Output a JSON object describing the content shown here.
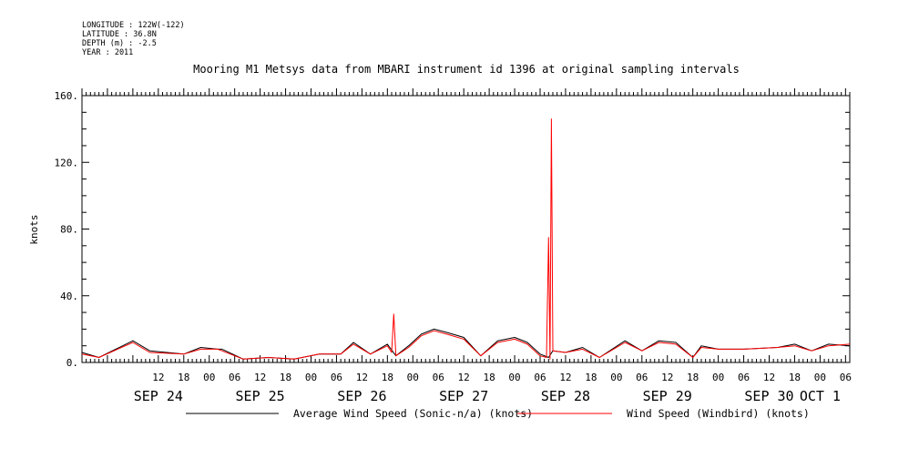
{
  "header": {
    "longitude": "LONGITUDE : 122W(-122)",
    "latitude": "LATITUDE : 36.8N",
    "depth": "DEPTH (m) : -2.5",
    "year": "YEAR : 2011"
  },
  "chart_data": {
    "type": "line",
    "title": "Mooring M1 Metsys data from MBARI instrument id 1396 at original sampling intervals",
    "ylabel": "knots",
    "xlabel": "",
    "ylim": [
      0,
      160
    ],
    "yticks": [
      0,
      40,
      80,
      120,
      160
    ],
    "ytick_labels": [
      "0.",
      "40.",
      "80.",
      "120.",
      "160."
    ],
    "xlim": [
      "2011-09-23T18:00",
      "2011-10-01T07:00"
    ],
    "hour_ticks": [
      {
        "t": "2011-09-24T12:00",
        "label": "12"
      },
      {
        "t": "2011-09-24T18:00",
        "label": "18"
      },
      {
        "t": "2011-09-25T00:00",
        "label": "00"
      },
      {
        "t": "2011-09-25T06:00",
        "label": "06"
      },
      {
        "t": "2011-09-25T12:00",
        "label": "12"
      },
      {
        "t": "2011-09-25T18:00",
        "label": "18"
      },
      {
        "t": "2011-09-26T00:00",
        "label": "00"
      },
      {
        "t": "2011-09-26T06:00",
        "label": "06"
      },
      {
        "t": "2011-09-26T12:00",
        "label": "12"
      },
      {
        "t": "2011-09-26T18:00",
        "label": "18"
      },
      {
        "t": "2011-09-27T00:00",
        "label": "00"
      },
      {
        "t": "2011-09-27T06:00",
        "label": "06"
      },
      {
        "t": "2011-09-27T12:00",
        "label": "12"
      },
      {
        "t": "2011-09-27T18:00",
        "label": "18"
      },
      {
        "t": "2011-09-28T00:00",
        "label": "00"
      },
      {
        "t": "2011-09-28T06:00",
        "label": "06"
      },
      {
        "t": "2011-09-28T12:00",
        "label": "12"
      },
      {
        "t": "2011-09-28T18:00",
        "label": "18"
      },
      {
        "t": "2011-09-29T00:00",
        "label": "00"
      },
      {
        "t": "2011-09-29T06:00",
        "label": "06"
      },
      {
        "t": "2011-09-29T12:00",
        "label": "12"
      },
      {
        "t": "2011-09-29T18:00",
        "label": "18"
      },
      {
        "t": "2011-09-30T00:00",
        "label": "00"
      },
      {
        "t": "2011-09-30T06:00",
        "label": "06"
      },
      {
        "t": "2011-09-30T12:00",
        "label": "12"
      },
      {
        "t": "2011-09-30T18:00",
        "label": "18"
      },
      {
        "t": "2011-10-01T00:00",
        "label": "00"
      },
      {
        "t": "2011-10-01T06:00",
        "label": "06"
      }
    ],
    "date_labels": [
      {
        "t": "2011-09-24T12:00",
        "label": "SEP 24"
      },
      {
        "t": "2011-09-25T12:00",
        "label": "SEP 25"
      },
      {
        "t": "2011-09-26T12:00",
        "label": "SEP 26"
      },
      {
        "t": "2011-09-27T12:00",
        "label": "SEP 27"
      },
      {
        "t": "2011-09-28T12:00",
        "label": "SEP 28"
      },
      {
        "t": "2011-09-29T12:00",
        "label": "SEP 29"
      },
      {
        "t": "2011-09-30T12:00",
        "label": "SEP 30"
      },
      {
        "t": "2011-10-01T00:00",
        "label": "OCT  1"
      }
    ],
    "series": [
      {
        "name": "Average Wind Speed (Sonic-n/a) (knots)",
        "color": "#000000",
        "x": [
          "2011-09-23T18:00",
          "2011-09-23T22:00",
          "2011-09-24T06:00",
          "2011-09-24T10:00",
          "2011-09-24T18:00",
          "2011-09-24T22:00",
          "2011-09-25T02:00",
          "2011-09-25T03:00",
          "2011-09-25T08:00",
          "2011-09-25T14:00",
          "2011-09-25T20:00",
          "2011-09-26T02:00",
          "2011-09-26T07:00",
          "2011-09-26T10:00",
          "2011-09-26T14:00",
          "2011-09-26T18:00",
          "2011-09-26T20:00",
          "2011-09-26T23:00",
          "2011-09-27T02:00",
          "2011-09-27T05:00",
          "2011-09-27T08:00",
          "2011-09-27T12:00",
          "2011-09-27T16:00",
          "2011-09-27T20:00",
          "2011-09-28T00:00",
          "2011-09-28T03:00",
          "2011-09-28T06:00",
          "2011-09-28T08:00",
          "2011-09-28T09:00",
          "2011-09-28T12:00",
          "2011-09-28T16:00",
          "2011-09-28T20:00",
          "2011-09-29T02:00",
          "2011-09-29T06:00",
          "2011-09-29T10:00",
          "2011-09-29T14:00",
          "2011-09-29T18:00",
          "2011-09-29T20:00",
          "2011-09-30T00:00",
          "2011-09-30T06:00",
          "2011-09-30T14:00",
          "2011-09-30T18:00",
          "2011-09-30T22:00",
          "2011-10-01T02:00",
          "2011-10-01T07:00"
        ],
        "y": [
          6,
          3,
          13,
          7,
          5,
          9,
          8,
          8,
          2,
          3,
          2,
          5,
          5,
          12,
          5,
          11,
          4,
          10,
          17,
          20,
          18,
          15,
          4,
          13,
          15,
          12,
          5,
          3,
          7,
          6,
          9,
          3,
          13,
          7,
          13,
          12,
          3,
          10,
          8,
          8,
          9,
          11,
          7,
          11,
          10
        ]
      },
      {
        "name": "Wind Speed (Windbird) (knots)",
        "color": "#ff0000",
        "x": [
          "2011-09-23T18:00",
          "2011-09-23T22:00",
          "2011-09-24T06:00",
          "2011-09-24T10:00",
          "2011-09-24T18:00",
          "2011-09-24T22:00",
          "2011-09-25T02:00",
          "2011-09-25T03:00",
          "2011-09-25T08:00",
          "2011-09-25T14:00",
          "2011-09-25T20:00",
          "2011-09-26T02:00",
          "2011-09-26T07:00",
          "2011-09-26T10:00",
          "2011-09-26T14:00",
          "2011-09-26T18:00",
          "2011-09-26T19:00",
          "2011-09-26T19:30",
          "2011-09-26T20:00",
          "2011-09-26T23:00",
          "2011-09-27T02:00",
          "2011-09-27T05:00",
          "2011-09-27T08:00",
          "2011-09-27T12:00",
          "2011-09-27T16:00",
          "2011-09-27T20:00",
          "2011-09-28T00:00",
          "2011-09-28T03:00",
          "2011-09-28T06:00",
          "2011-09-28T07:30",
          "2011-09-28T08:00",
          "2011-09-28T08:20",
          "2011-09-28T08:40",
          "2011-09-28T09:00",
          "2011-09-28T12:00",
          "2011-09-28T16:00",
          "2011-09-28T20:00",
          "2011-09-29T02:00",
          "2011-09-29T06:00",
          "2011-09-29T10:00",
          "2011-09-29T14:00",
          "2011-09-29T18:00",
          "2011-09-29T20:00",
          "2011-09-30T00:00",
          "2011-09-30T06:00",
          "2011-09-30T14:00",
          "2011-09-30T18:00",
          "2011-09-30T22:00",
          "2011-10-01T02:00",
          "2011-10-01T07:00"
        ],
        "y": [
          5,
          3,
          12,
          6,
          5,
          8,
          8,
          7,
          2,
          3,
          2,
          5,
          5,
          11,
          5,
          10,
          6,
          29,
          4,
          9,
          16,
          19,
          17,
          14,
          4,
          12,
          14,
          11,
          4,
          3,
          75,
          2,
          146,
          7,
          6,
          8,
          3,
          12,
          7,
          12,
          11,
          3,
          9,
          8,
          8,
          9,
          10,
          7,
          10,
          11
        ]
      }
    ],
    "legend": "bottom"
  }
}
